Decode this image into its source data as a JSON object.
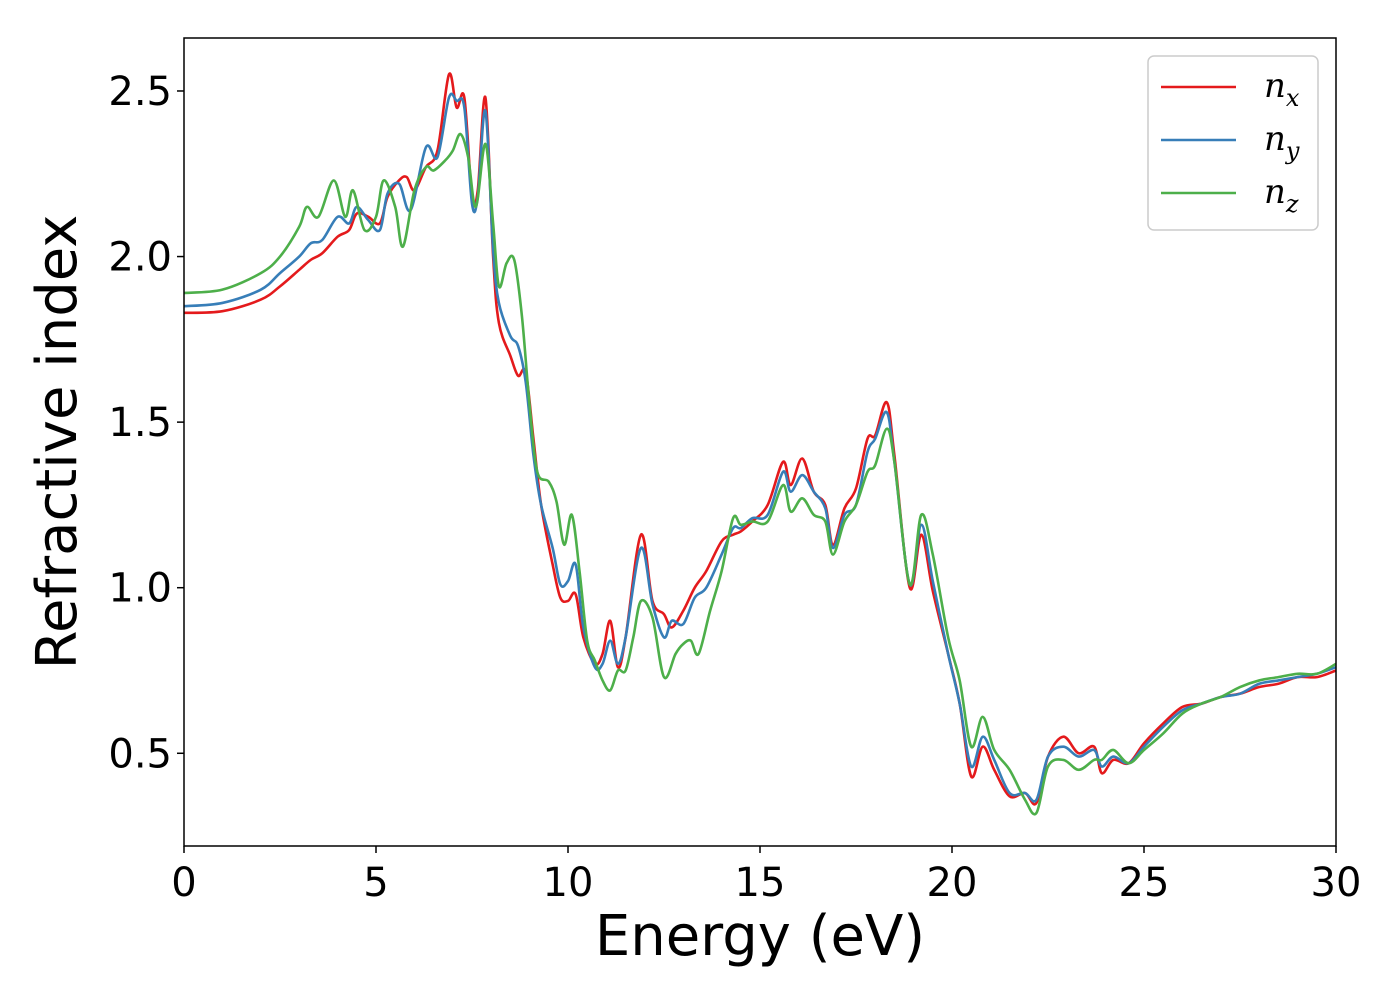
{
  "chart_data": {
    "type": "line",
    "title": "",
    "xlabel": "Energy (eV)",
    "ylabel": "Refractive index",
    "xlim": [
      0,
      30
    ],
    "ylim": [
      0.22,
      2.66
    ],
    "xticks": [
      0,
      5,
      10,
      15,
      20,
      25,
      30
    ],
    "xtick_labels": [
      "0",
      "5",
      "10",
      "15",
      "20",
      "25",
      "30"
    ],
    "yticks": [
      0.5,
      1.0,
      1.5,
      2.0,
      2.5
    ],
    "ytick_labels": [
      "0.5",
      "1.0",
      "1.5",
      "2.0",
      "2.5"
    ],
    "grid": false,
    "legend_position": "top-right",
    "series": [
      {
        "name": "n_x",
        "label_base": "n",
        "label_sub": "x",
        "color": "#e41a1c",
        "points": [
          [
            0,
            1.83
          ],
          [
            1,
            1.835
          ],
          [
            2,
            1.87
          ],
          [
            2.5,
            1.91
          ],
          [
            3,
            1.96
          ],
          [
            3.3,
            1.99
          ],
          [
            3.6,
            2.01
          ],
          [
            4,
            2.06
          ],
          [
            4.3,
            2.08
          ],
          [
            4.5,
            2.13
          ],
          [
            4.8,
            2.12
          ],
          [
            5.1,
            2.1
          ],
          [
            5.3,
            2.18
          ],
          [
            5.6,
            2.23
          ],
          [
            5.8,
            2.24
          ],
          [
            6,
            2.2
          ],
          [
            6.3,
            2.27
          ],
          [
            6.6,
            2.32
          ],
          [
            6.9,
            2.55
          ],
          [
            7.1,
            2.45
          ],
          [
            7.3,
            2.48
          ],
          [
            7.5,
            2.18
          ],
          [
            7.65,
            2.2
          ],
          [
            7.85,
            2.48
          ],
          [
            8.05,
            2.0
          ],
          [
            8.2,
            1.8
          ],
          [
            8.5,
            1.7
          ],
          [
            8.7,
            1.64
          ],
          [
            8.9,
            1.65
          ],
          [
            9.1,
            1.45
          ],
          [
            9.3,
            1.25
          ],
          [
            9.6,
            1.07
          ],
          [
            9.8,
            0.97
          ],
          [
            10.0,
            0.96
          ],
          [
            10.2,
            0.98
          ],
          [
            10.4,
            0.85
          ],
          [
            10.7,
            0.77
          ],
          [
            10.9,
            0.8
          ],
          [
            11.1,
            0.9
          ],
          [
            11.3,
            0.76
          ],
          [
            11.5,
            0.85
          ],
          [
            11.9,
            1.16
          ],
          [
            12.2,
            0.96
          ],
          [
            12.5,
            0.92
          ],
          [
            12.7,
            0.88
          ],
          [
            13.0,
            0.93
          ],
          [
            13.3,
            1.0
          ],
          [
            13.6,
            1.05
          ],
          [
            14.0,
            1.14
          ],
          [
            14.3,
            1.16
          ],
          [
            14.5,
            1.17
          ],
          [
            14.8,
            1.2
          ],
          [
            15.2,
            1.25
          ],
          [
            15.6,
            1.38
          ],
          [
            15.8,
            1.31
          ],
          [
            16.1,
            1.39
          ],
          [
            16.4,
            1.29
          ],
          [
            16.7,
            1.25
          ],
          [
            16.9,
            1.13
          ],
          [
            17.2,
            1.24
          ],
          [
            17.5,
            1.3
          ],
          [
            17.8,
            1.45
          ],
          [
            18.0,
            1.46
          ],
          [
            18.3,
            1.56
          ],
          [
            18.5,
            1.4
          ],
          [
            18.9,
            1.0
          ],
          [
            19.2,
            1.16
          ],
          [
            19.5,
            0.99
          ],
          [
            19.9,
            0.8
          ],
          [
            20.2,
            0.65
          ],
          [
            20.5,
            0.43
          ],
          [
            20.8,
            0.52
          ],
          [
            21.1,
            0.45
          ],
          [
            21.5,
            0.37
          ],
          [
            21.9,
            0.38
          ],
          [
            22.2,
            0.35
          ],
          [
            22.5,
            0.49
          ],
          [
            22.9,
            0.55
          ],
          [
            23.3,
            0.5
          ],
          [
            23.7,
            0.52
          ],
          [
            23.9,
            0.44
          ],
          [
            24.2,
            0.48
          ],
          [
            24.6,
            0.47
          ],
          [
            25.0,
            0.53
          ],
          [
            25.5,
            0.59
          ],
          [
            26,
            0.64
          ],
          [
            26.5,
            0.65
          ],
          [
            27,
            0.67
          ],
          [
            27.5,
            0.68
          ],
          [
            28,
            0.7
          ],
          [
            28.5,
            0.71
          ],
          [
            29,
            0.73
          ],
          [
            29.5,
            0.73
          ],
          [
            30,
            0.75
          ]
        ]
      },
      {
        "name": "n_y",
        "label_base": "n",
        "label_sub": "y",
        "color": "#377eb8",
        "points": [
          [
            0,
            1.85
          ],
          [
            1,
            1.86
          ],
          [
            2,
            1.9
          ],
          [
            2.5,
            1.95
          ],
          [
            3,
            2.0
          ],
          [
            3.3,
            2.04
          ],
          [
            3.6,
            2.05
          ],
          [
            4,
            2.12
          ],
          [
            4.3,
            2.1
          ],
          [
            4.5,
            2.15
          ],
          [
            4.8,
            2.11
          ],
          [
            5.1,
            2.08
          ],
          [
            5.3,
            2.19
          ],
          [
            5.6,
            2.22
          ],
          [
            5.9,
            2.14
          ],
          [
            6.3,
            2.33
          ],
          [
            6.6,
            2.3
          ],
          [
            6.9,
            2.48
          ],
          [
            7.1,
            2.47
          ],
          [
            7.3,
            2.45
          ],
          [
            7.5,
            2.16
          ],
          [
            7.65,
            2.18
          ],
          [
            7.85,
            2.44
          ],
          [
            8.05,
            2.02
          ],
          [
            8.2,
            1.86
          ],
          [
            8.5,
            1.76
          ],
          [
            8.7,
            1.73
          ],
          [
            8.9,
            1.62
          ],
          [
            9.1,
            1.4
          ],
          [
            9.3,
            1.25
          ],
          [
            9.6,
            1.12
          ],
          [
            9.8,
            1.01
          ],
          [
            10.0,
            1.02
          ],
          [
            10.2,
            1.07
          ],
          [
            10.4,
            0.88
          ],
          [
            10.7,
            0.76
          ],
          [
            10.9,
            0.77
          ],
          [
            11.1,
            0.84
          ],
          [
            11.3,
            0.77
          ],
          [
            11.5,
            0.85
          ],
          [
            11.9,
            1.12
          ],
          [
            12.2,
            0.95
          ],
          [
            12.5,
            0.85
          ],
          [
            12.7,
            0.9
          ],
          [
            13.0,
            0.89
          ],
          [
            13.3,
            0.97
          ],
          [
            13.6,
            1.0
          ],
          [
            14.0,
            1.1
          ],
          [
            14.3,
            1.18
          ],
          [
            14.5,
            1.18
          ],
          [
            14.8,
            1.21
          ],
          [
            15.2,
            1.22
          ],
          [
            15.6,
            1.35
          ],
          [
            15.8,
            1.29
          ],
          [
            16.1,
            1.34
          ],
          [
            16.4,
            1.29
          ],
          [
            16.7,
            1.24
          ],
          [
            16.9,
            1.12
          ],
          [
            17.2,
            1.22
          ],
          [
            17.5,
            1.25
          ],
          [
            17.8,
            1.41
          ],
          [
            18.0,
            1.45
          ],
          [
            18.3,
            1.53
          ],
          [
            18.5,
            1.38
          ],
          [
            18.9,
            1.01
          ],
          [
            19.2,
            1.19
          ],
          [
            19.5,
            1.02
          ],
          [
            19.9,
            0.8
          ],
          [
            20.2,
            0.65
          ],
          [
            20.5,
            0.46
          ],
          [
            20.8,
            0.55
          ],
          [
            21.1,
            0.48
          ],
          [
            21.5,
            0.38
          ],
          [
            21.9,
            0.38
          ],
          [
            22.2,
            0.36
          ],
          [
            22.5,
            0.49
          ],
          [
            22.9,
            0.52
          ],
          [
            23.3,
            0.49
          ],
          [
            23.7,
            0.51
          ],
          [
            23.9,
            0.46
          ],
          [
            24.2,
            0.49
          ],
          [
            24.6,
            0.47
          ],
          [
            25.0,
            0.52
          ],
          [
            25.5,
            0.58
          ],
          [
            26,
            0.63
          ],
          [
            26.5,
            0.65
          ],
          [
            27,
            0.67
          ],
          [
            27.5,
            0.68
          ],
          [
            28,
            0.71
          ],
          [
            28.5,
            0.72
          ],
          [
            29,
            0.73
          ],
          [
            29.5,
            0.74
          ],
          [
            30,
            0.76
          ]
        ]
      },
      {
        "name": "n_z",
        "label_base": "n",
        "label_sub": "z",
        "color": "#4daf4a",
        "points": [
          [
            0,
            1.89
          ],
          [
            1,
            1.9
          ],
          [
            2,
            1.95
          ],
          [
            2.5,
            2.0
          ],
          [
            3,
            2.09
          ],
          [
            3.2,
            2.15
          ],
          [
            3.5,
            2.12
          ],
          [
            3.9,
            2.23
          ],
          [
            4.2,
            2.12
          ],
          [
            4.4,
            2.2
          ],
          [
            4.7,
            2.08
          ],
          [
            5.0,
            2.12
          ],
          [
            5.2,
            2.23
          ],
          [
            5.5,
            2.15
          ],
          [
            5.7,
            2.03
          ],
          [
            6.0,
            2.2
          ],
          [
            6.3,
            2.27
          ],
          [
            6.5,
            2.26
          ],
          [
            6.8,
            2.29
          ],
          [
            7.0,
            2.32
          ],
          [
            7.2,
            2.37
          ],
          [
            7.4,
            2.3
          ],
          [
            7.6,
            2.15
          ],
          [
            7.85,
            2.34
          ],
          [
            8.05,
            2.1
          ],
          [
            8.2,
            1.91
          ],
          [
            8.4,
            1.98
          ],
          [
            8.6,
            1.99
          ],
          [
            8.8,
            1.82
          ],
          [
            9.0,
            1.55
          ],
          [
            9.2,
            1.35
          ],
          [
            9.5,
            1.32
          ],
          [
            9.7,
            1.26
          ],
          [
            9.9,
            1.13
          ],
          [
            10.1,
            1.22
          ],
          [
            10.3,
            1.05
          ],
          [
            10.5,
            0.84
          ],
          [
            10.7,
            0.78
          ],
          [
            10.9,
            0.72
          ],
          [
            11.1,
            0.69
          ],
          [
            11.3,
            0.75
          ],
          [
            11.5,
            0.75
          ],
          [
            11.7,
            0.85
          ],
          [
            11.9,
            0.96
          ],
          [
            12.2,
            0.91
          ],
          [
            12.5,
            0.73
          ],
          [
            12.8,
            0.8
          ],
          [
            13.0,
            0.83
          ],
          [
            13.2,
            0.84
          ],
          [
            13.4,
            0.8
          ],
          [
            13.7,
            0.93
          ],
          [
            14.0,
            1.05
          ],
          [
            14.3,
            1.21
          ],
          [
            14.5,
            1.19
          ],
          [
            14.8,
            1.2
          ],
          [
            15.2,
            1.2
          ],
          [
            15.6,
            1.31
          ],
          [
            15.8,
            1.23
          ],
          [
            16.1,
            1.27
          ],
          [
            16.4,
            1.22
          ],
          [
            16.7,
            1.2
          ],
          [
            16.9,
            1.1
          ],
          [
            17.2,
            1.2
          ],
          [
            17.5,
            1.25
          ],
          [
            17.8,
            1.35
          ],
          [
            18.0,
            1.37
          ],
          [
            18.3,
            1.48
          ],
          [
            18.5,
            1.38
          ],
          [
            18.9,
            1.01
          ],
          [
            19.2,
            1.22
          ],
          [
            19.5,
            1.1
          ],
          [
            19.9,
            0.85
          ],
          [
            20.2,
            0.72
          ],
          [
            20.5,
            0.52
          ],
          [
            20.8,
            0.61
          ],
          [
            21.1,
            0.51
          ],
          [
            21.5,
            0.45
          ],
          [
            21.9,
            0.36
          ],
          [
            22.2,
            0.32
          ],
          [
            22.5,
            0.46
          ],
          [
            22.9,
            0.48
          ],
          [
            23.3,
            0.45
          ],
          [
            23.7,
            0.48
          ],
          [
            23.9,
            0.48
          ],
          [
            24.2,
            0.51
          ],
          [
            24.6,
            0.47
          ],
          [
            25.0,
            0.51
          ],
          [
            25.5,
            0.56
          ],
          [
            26,
            0.62
          ],
          [
            26.5,
            0.65
          ],
          [
            27,
            0.67
          ],
          [
            27.5,
            0.7
          ],
          [
            28,
            0.72
          ],
          [
            28.5,
            0.73
          ],
          [
            29,
            0.74
          ],
          [
            29.5,
            0.74
          ],
          [
            30,
            0.77
          ]
        ]
      }
    ]
  }
}
